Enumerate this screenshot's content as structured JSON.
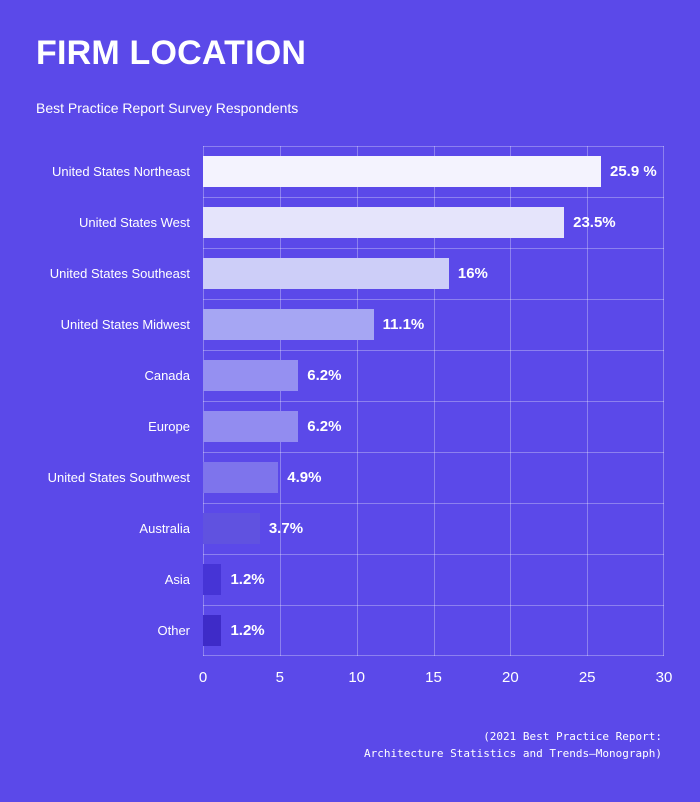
{
  "page": {
    "background": "#5B49E9",
    "title": "FIRM LOCATION",
    "subtitle": "Best Practice Report Survey Respondents",
    "footer": {
      "line1": "(2021 Best Practice Report:",
      "line2": "Architecture Statistics and Trends—Monograph)"
    }
  },
  "chart_data": {
    "type": "bar",
    "orientation": "horizontal",
    "title": "FIRM LOCATION",
    "subtitle": "Best Practice Report Survey Respondents",
    "categories": [
      "United States Northeast",
      "United States West",
      "United States Southeast",
      "United States Midwest",
      "Canada",
      "Europe",
      "United States Southwest",
      "Australia",
      "Asia",
      "Other"
    ],
    "values": [
      25.9,
      23.5,
      16,
      11.1,
      6.2,
      6.2,
      4.9,
      3.7,
      1.2,
      1.2
    ],
    "value_labels": [
      "25.9 %",
      "23.5%",
      "16%",
      "11.1%",
      "6.2%",
      "6.2%",
      "4.9%",
      "3.7%",
      "1.2%",
      "1.2%"
    ],
    "bar_colors": [
      "#F4F3FE",
      "#E5E4FB",
      "#CDCEF8",
      "#A6A6F3",
      "#9590F1",
      "#928CF0",
      "#7E74EC",
      "#6052E0",
      "#4634D6",
      "#3E2BC8"
    ],
    "x_ticks": [
      0,
      5,
      10,
      15,
      20,
      25,
      30
    ],
    "xlim": [
      0,
      30
    ],
    "xlabel": "",
    "ylabel": "",
    "grid": true,
    "legend": false,
    "gridline_color": "rgba(255,255,255,0.30)",
    "background_color": "#5B49E9",
    "text_color": "#FFFFFF"
  }
}
